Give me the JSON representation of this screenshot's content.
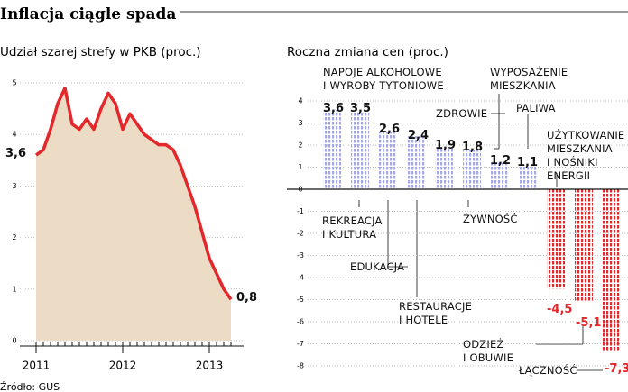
{
  "title": "Inflacja ciągle spada",
  "source": "Źródło: GUS",
  "chart_data": [
    {
      "type": "area",
      "subtitle": "Udział szarej strefy w PKB (proc.)",
      "categories": [
        "2011",
        null,
        null,
        null,
        null,
        null,
        null,
        null,
        null,
        null,
        null,
        null,
        "2012",
        null,
        null,
        null,
        null,
        null,
        null,
        null,
        null,
        null,
        null,
        null,
        "2013",
        null,
        null,
        null
      ],
      "values": [
        3.6,
        3.7,
        4.1,
        4.6,
        4.9,
        4.2,
        4.1,
        4.3,
        4.1,
        4.5,
        4.8,
        4.6,
        4.1,
        4.4,
        4.2,
        4.0,
        3.9,
        3.8,
        3.8,
        3.7,
        3.4,
        3.0,
        2.6,
        2.1,
        1.6,
        1.3,
        1.0,
        0.8
      ],
      "value_labels": [
        "3,6",
        null,
        null,
        null,
        null,
        null,
        null,
        null,
        null,
        null,
        null,
        null,
        null,
        null,
        null,
        null,
        null,
        null,
        null,
        null,
        null,
        null,
        null,
        null,
        null,
        null,
        null,
        "0,8"
      ],
      "color": "#e3272b",
      "fill": "#eddcc5",
      "ylim": [
        0,
        5
      ],
      "yticks": [
        0,
        1,
        2,
        3,
        4,
        5
      ],
      "grid": true
    },
    {
      "type": "bar",
      "subtitle": "Roczna zmiana cen (proc.)",
      "categories": [
        "NAPOJE ALKOHOLOWE\nI WYROBY TYTONIOWE",
        "REKREACJA\nI KULTURA",
        "EDUKACJA",
        "RESTAURACJE\nI HOTELE",
        "ZDROWIE",
        "ŻYWNOŚĆ",
        "WYPOSAŻENIE\nMIESZKANIA",
        "PALIWA",
        "UŻYTKOWANIE\nMIESZKANIA\nI NOŚNIKI\nENERGII",
        "ODZIEŻ\nI OBUWIE",
        "ŁĄCZNOŚĆ"
      ],
      "values": [
        3.6,
        3.5,
        2.6,
        2.4,
        1.9,
        1.8,
        1.2,
        1.1,
        -4.5,
        -5.1,
        -7.3
      ],
      "value_labels": [
        "3,6",
        "3,5",
        "2,6",
        "2,4",
        "1,9",
        "1,8",
        "1,2",
        "1,1",
        "-4,5",
        "-5,1",
        "-7,3"
      ],
      "colors": {
        "positive": "#a4a8e6",
        "negative": "#e3272b"
      },
      "ylim": [
        -8.5,
        4.5
      ],
      "yticks": [
        -8,
        -7,
        -6,
        -5,
        -4,
        -3,
        -2,
        -1,
        0,
        1,
        2,
        3,
        4
      ],
      "grid": true
    }
  ]
}
